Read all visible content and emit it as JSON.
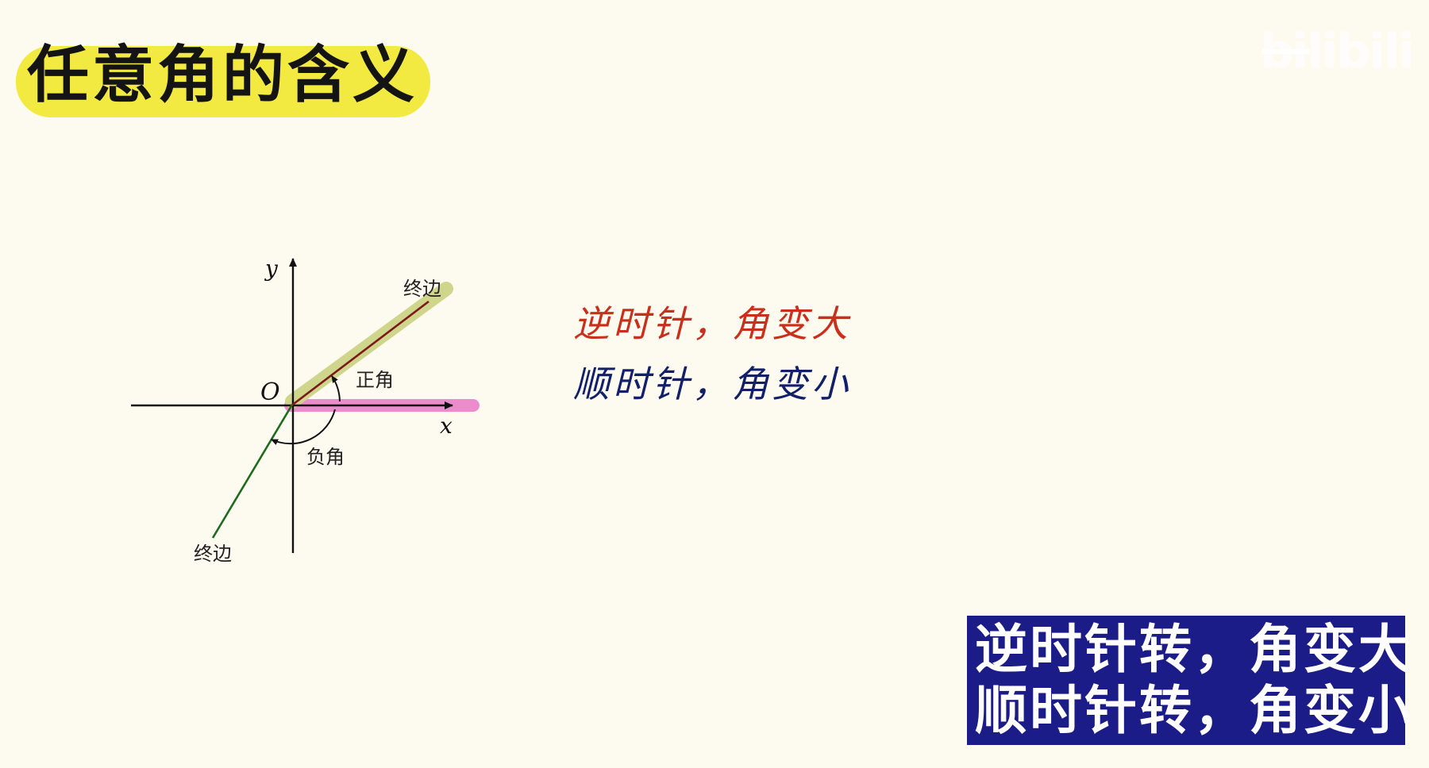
{
  "title": "任意角的含义",
  "watermark": "bilibili",
  "diagram": {
    "y_label": "y",
    "x_label": "x",
    "origin_label": "O",
    "terminal_side_upper": "终边",
    "terminal_side_lower": "终边",
    "positive_angle": "正角",
    "negative_angle": "负角"
  },
  "handwritten": {
    "line1": "逆时针，角变大",
    "line2": "顺时针，角变小"
  },
  "summary": {
    "line1": "逆时针转，角变大",
    "line2": "顺时针转，角变小"
  },
  "colors": {
    "background": "#fdfaf0",
    "title_highlight": "#f2ea40",
    "pink_highlight": "#ec8ccd",
    "olive_highlight": "#cfd58a",
    "upper_terminal": "#7a1a1a",
    "lower_terminal": "#1e6a1e",
    "handwritten_red": "#c8301c",
    "handwritten_blue": "#12206a",
    "summary_box": "#1c1c88"
  }
}
